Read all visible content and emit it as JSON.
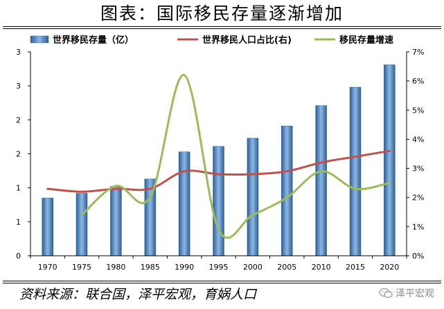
{
  "title": "图表：国际移民存量逐渐增加",
  "footer": {
    "source": "资料来源：联合国，泽平宏观，育娲人口",
    "watermark": "泽平宏观",
    "watermark_icon": "wechat-icon"
  },
  "chart_data": {
    "type": "bar",
    "categories": [
      "1970",
      "1975",
      "1980",
      "1985",
      "1990",
      "1995",
      "2000",
      "2005",
      "2010",
      "2015",
      "2020"
    ],
    "series": [
      {
        "name": "世界移民存量（亿）",
        "type": "bar",
        "axis": "left",
        "values": [
          0.85,
          0.92,
          1.02,
          1.13,
          1.53,
          1.61,
          1.73,
          1.91,
          2.21,
          2.48,
          2.81
        ],
        "color": "#4a86c5"
      },
      {
        "name": "世界移民人口占比(右)",
        "type": "line",
        "axis": "right",
        "unit": "%",
        "values": [
          2.3,
          2.2,
          2.3,
          2.3,
          2.9,
          2.8,
          2.8,
          2.9,
          3.2,
          3.4,
          3.6
        ],
        "color": "#c0504d"
      },
      {
        "name": "移民存量增速",
        "type": "line",
        "axis": "right",
        "unit": "%",
        "x_start": "1975",
        "values": [
          null,
          1.4,
          2.4,
          2.0,
          6.2,
          0.9,
          1.4,
          2.0,
          2.9,
          2.3,
          2.5
        ],
        "color": "#9bbb59"
      }
    ],
    "left_axis": {
      "ylim": [
        0,
        3
      ],
      "tick_values": [
        0,
        0.5,
        1,
        1.5,
        2,
        2.5,
        3
      ],
      "tick_labels": [
        "0",
        "1",
        "1",
        "2",
        "2",
        "3",
        "3"
      ]
    },
    "right_axis": {
      "ylim": [
        0,
        7
      ],
      "tick_values": [
        0,
        1,
        2,
        3,
        4,
        5,
        6,
        7
      ],
      "tick_labels": [
        "0%",
        "1%",
        "2%",
        "3%",
        "4%",
        "5%",
        "6%",
        "7%"
      ]
    },
    "legend_position": "top",
    "grid": false
  }
}
